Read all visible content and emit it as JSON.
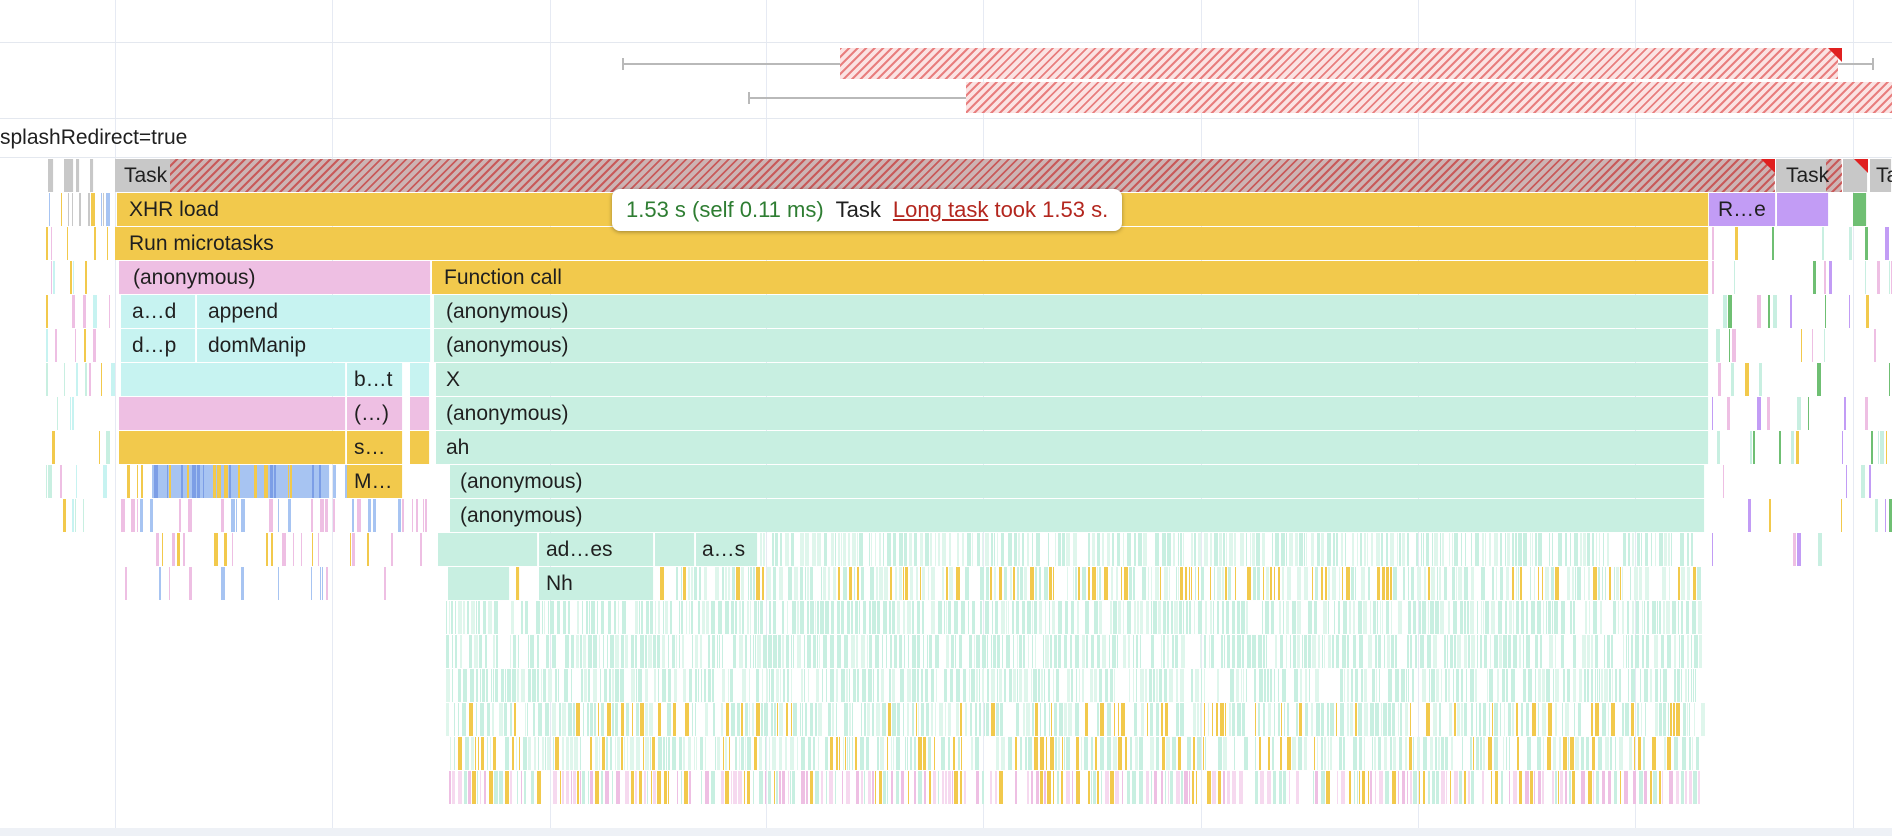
{
  "navigation": {
    "url_label": "splashRedirect=true"
  },
  "tooltip": {
    "time": "1.53 s (self 0.11 ms)",
    "name": "Task",
    "link": "Long task",
    "message": "took 1.53 s."
  },
  "flame": {
    "task_labels": [
      "Task",
      "Task",
      "Ta"
    ],
    "entries": [
      {
        "id": "xhr-load",
        "label": "XHR load"
      },
      {
        "id": "r-e",
        "label": "R…e"
      },
      {
        "id": "run-microtasks",
        "label": "Run microtasks"
      },
      {
        "id": "anonymous-1",
        "label": "(anonymous)"
      },
      {
        "id": "function-call",
        "label": "Function call"
      },
      {
        "id": "a-d",
        "label": "a…d"
      },
      {
        "id": "append",
        "label": "append"
      },
      {
        "id": "anonymous-2",
        "label": "(anonymous)"
      },
      {
        "id": "d-p",
        "label": "d…p"
      },
      {
        "id": "dommanip",
        "label": "domManip"
      },
      {
        "id": "anonymous-3",
        "label": "(anonymous)"
      },
      {
        "id": "b-t",
        "label": "b…t"
      },
      {
        "id": "x",
        "label": "X"
      },
      {
        "id": "paren-dots",
        "label": "(…)"
      },
      {
        "id": "anonymous-4",
        "label": "(anonymous)"
      },
      {
        "id": "s-dots",
        "label": "s…"
      },
      {
        "id": "ah",
        "label": "ah"
      },
      {
        "id": "m-dots",
        "label": "M…"
      },
      {
        "id": "anonymous-5",
        "label": "(anonymous)"
      },
      {
        "id": "anonymous-6",
        "label": "(anonymous)"
      },
      {
        "id": "ad-es",
        "label": "ad…es"
      },
      {
        "id": "a-s",
        "label": "a…s"
      },
      {
        "id": "nh",
        "label": "Nh"
      }
    ]
  },
  "colors": {
    "task": "#c8c8c8",
    "long_task": "#e02020",
    "scripting": "#f2c94c",
    "function": "#c8efe1",
    "dom": "#c7f3f1",
    "anonymous_pink": "#eebfe3",
    "layout": "#c29cf5",
    "paint": "#6fbf73",
    "gc": "#a7c4f2"
  }
}
